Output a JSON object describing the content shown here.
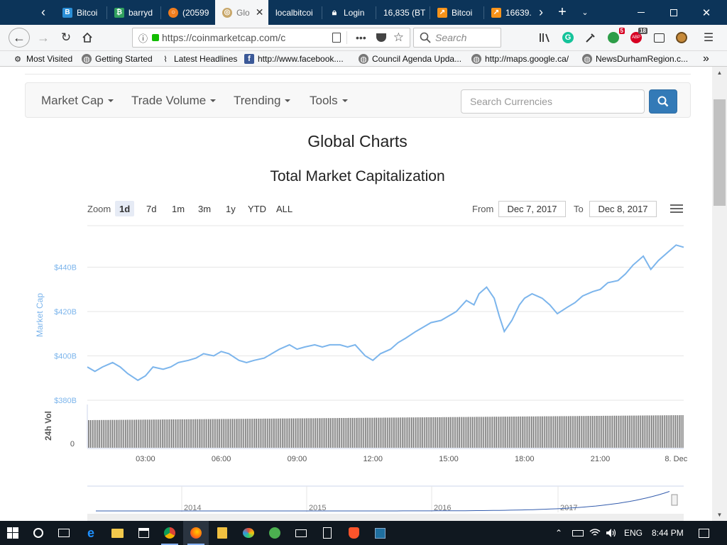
{
  "browser": {
    "tabs": [
      {
        "label": "Bitcoi",
        "icon": "bittrex-icon",
        "color": "#2b8fd7"
      },
      {
        "label": "barryd",
        "icon": "bitcointalk-icon",
        "color": "#32a05f"
      },
      {
        "label": "(20599",
        "icon": "ring-icon",
        "color": "#f07d1e"
      },
      {
        "label": "Glo",
        "icon": "coinmarketcap-icon",
        "color": "#c8a76a"
      },
      {
        "label": "localbitcoi",
        "icon": "",
        "color": ""
      },
      {
        "label": "Login",
        "icon": "lock-icon",
        "color": "#ffffff"
      },
      {
        "label": "16,835 (BT",
        "icon": "",
        "color": ""
      },
      {
        "label": "Bitcoi",
        "icon": "chart-up-icon",
        "color": "#f7931a"
      },
      {
        "label": "16639.",
        "icon": "chart-up-icon",
        "color": "#f7931a"
      }
    ],
    "url": "https://coinmarketcap.com/c",
    "search_placeholder": "Search",
    "badges": {
      "green": "5",
      "red": "18"
    }
  },
  "bookmarks": [
    {
      "label": "Most Visited",
      "icon": "gear-icon"
    },
    {
      "label": "Getting Started",
      "icon": "globe-icon"
    },
    {
      "label": "Latest Headlines",
      "icon": "rss-icon"
    },
    {
      "label": "http://www.facebook....",
      "icon": "facebook-icon"
    },
    {
      "label": "Council Agenda Upda...",
      "icon": "globe-icon"
    },
    {
      "label": "http://maps.google.ca/",
      "icon": "globe-icon"
    },
    {
      "label": "NewsDurhamRegion.c...",
      "icon": "globe-icon"
    }
  ],
  "site": {
    "menu": [
      "Market Cap",
      "Trade Volume",
      "Trending",
      "Tools"
    ],
    "search_placeholder": "Search Currencies",
    "page_title": "Global Charts",
    "chart_title": "Total Market Capitalization"
  },
  "controls": {
    "zoom_label": "Zoom",
    "zoom_options": [
      "1d",
      "7d",
      "1m",
      "3m",
      "1y",
      "YTD",
      "ALL"
    ],
    "selected": "1d",
    "from_label": "From",
    "from_date": "Dec 7, 2017",
    "to_label": "To",
    "to_date": "Dec 8, 2017"
  },
  "chart_data": {
    "type": "line",
    "title": "Total Market Capitalization",
    "ylabel": "Market Cap",
    "volume_label": "24h Vol",
    "yticks": [
      "$380B",
      "$400B",
      "$420B",
      "$440B"
    ],
    "ytick_values": [
      380,
      400,
      420,
      440
    ],
    "volume_tick": "0",
    "ylim": [
      380,
      451
    ],
    "xticks": [
      "03:00",
      "06:00",
      "09:00",
      "12:00",
      "15:00",
      "18:00",
      "21:00",
      "8. Dec"
    ],
    "xtick_hours": [
      3,
      6,
      9,
      12,
      15,
      18,
      21,
      24
    ],
    "xlim_hours": [
      0.7,
      24.3
    ],
    "x": [
      0.7,
      1.0,
      1.3,
      1.7,
      2.0,
      2.3,
      2.7,
      3.0,
      3.3,
      3.7,
      4.0,
      4.3,
      4.7,
      5.0,
      5.3,
      5.7,
      6.0,
      6.3,
      6.7,
      7.0,
      7.3,
      7.7,
      8.0,
      8.3,
      8.7,
      9.0,
      9.3,
      9.7,
      10.0,
      10.3,
      10.7,
      11.0,
      11.3,
      11.7,
      12.0,
      12.3,
      12.7,
      13.0,
      13.3,
      13.7,
      14.0,
      14.3,
      14.7,
      15.0,
      15.3,
      15.7,
      16.0,
      16.2,
      16.5,
      16.8,
      17.0,
      17.2,
      17.5,
      17.8,
      18.0,
      18.3,
      18.7,
      19.0,
      19.3,
      19.7,
      20.0,
      20.3,
      20.7,
      21.0,
      21.3,
      21.7,
      22.0,
      22.3,
      22.7,
      23.0,
      23.3,
      23.7,
      24.0,
      24.3
    ],
    "series": [
      {
        "name": "Market Cap",
        "color": "#7cb5ec",
        "values": [
          395,
          393,
          395,
          397,
          395,
          392,
          389,
          391,
          395,
          394,
          395,
          397,
          398,
          399,
          401,
          400,
          402,
          401,
          398,
          397,
          398,
          399,
          401,
          403,
          405,
          403,
          404,
          405,
          404,
          405,
          405,
          404,
          405,
          400,
          398,
          401,
          403,
          406,
          408,
          411,
          413,
          415,
          416,
          418,
          420,
          425,
          423,
          428,
          431,
          426,
          418,
          411,
          416,
          423,
          426,
          428,
          426,
          423,
          419,
          422,
          424,
          427,
          429,
          430,
          433,
          434,
          437,
          441,
          445,
          439,
          443,
          447,
          450,
          449
        ]
      }
    ],
    "volume_note": "daily 24h volume bars, roughly constant",
    "navigator": {
      "years": [
        "2014",
        "2015",
        "2016",
        "2017"
      ]
    }
  },
  "taskbar": {
    "time": "8:44 PM",
    "language": "ENG"
  }
}
